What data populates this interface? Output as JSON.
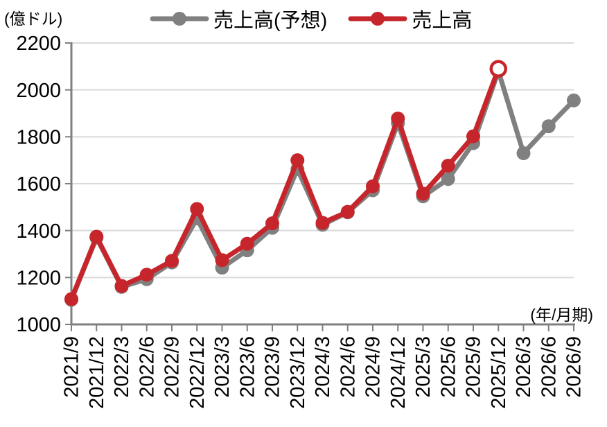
{
  "colors": {
    "background": "#ffffff",
    "grid": "#d9d9d9",
    "axis": "#7f7f7f",
    "text": "#000000",
    "forecast_gray": "#808080",
    "actual_red": "#c6262b",
    "hollow_marker_fill": "#ffffff"
  },
  "chart_data": {
    "type": "line",
    "title": "",
    "ylabel": "(億ドル)",
    "xlabel": "(年/月期)",
    "ylim": [
      1000,
      2200
    ],
    "ytick_step": 200,
    "yticks": [
      1000,
      1200,
      1400,
      1600,
      1800,
      2000,
      2200
    ],
    "grid": true,
    "legend_position": "top",
    "categories": [
      "2021/9",
      "2021/12",
      "2022/3",
      "2022/6",
      "2022/9",
      "2022/12",
      "2023/3",
      "2023/6",
      "2023/9",
      "2023/12",
      "2024/3",
      "2024/6",
      "2024/9",
      "2024/12",
      "2025/3",
      "2025/6",
      "2025/9",
      "2025/12",
      "2026/3",
      "2026/6",
      "2026/9"
    ],
    "series": [
      {
        "name": "売上高(予想)",
        "color": "#808080",
        "marker": "circle",
        "values": [
          1105,
          1370,
          1160,
          1193,
          1264,
          1452,
          1242,
          1316,
          1412,
          1662,
          1425,
          1478,
          1572,
          1858,
          1546,
          1620,
          1773,
          2080,
          1730,
          1845,
          1955
        ]
      },
      {
        "name": "売上高",
        "color": "#c6262b",
        "marker": "circle",
        "hollow_index": 17,
        "hollow_note": "2025/12 point drawn as open (white-filled) circle",
        "values": [
          1108,
          1374,
          1164,
          1212,
          1271,
          1492,
          1274,
          1344,
          1431,
          1700,
          1433,
          1480,
          1589,
          1878,
          1557,
          1677,
          1802,
          2090,
          null,
          null,
          null
        ]
      }
    ]
  }
}
